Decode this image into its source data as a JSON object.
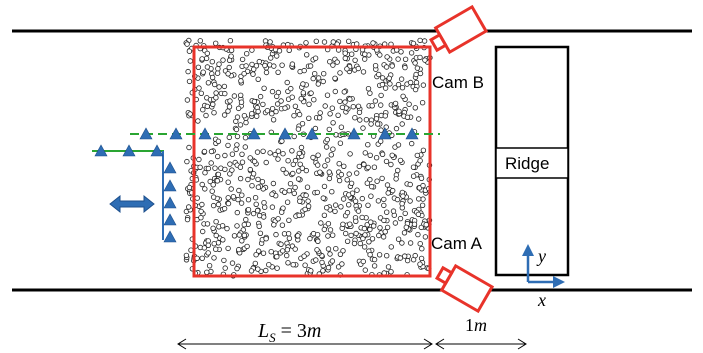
{
  "labels": {
    "cam_b": "Cam B",
    "cam_a": "Cam A",
    "ridge": "Ridge",
    "axis_y": "y",
    "axis_x": "x",
    "dim_test_area_symbol": "L",
    "dim_test_area_sub": "S",
    "dim_test_area_value": " = 3",
    "dim_test_area_unit": "m",
    "dim_gap_value": "1",
    "dim_gap_unit": "m"
  },
  "colors": {
    "test_area_border": "#e8332a",
    "camera": "#e8332a",
    "gauge_markers": "#2e6db4",
    "gauge_line": "#2aa532",
    "move_arrow": "#2e6db4",
    "axes": "#2e6db4",
    "walls": "#000000"
  }
}
